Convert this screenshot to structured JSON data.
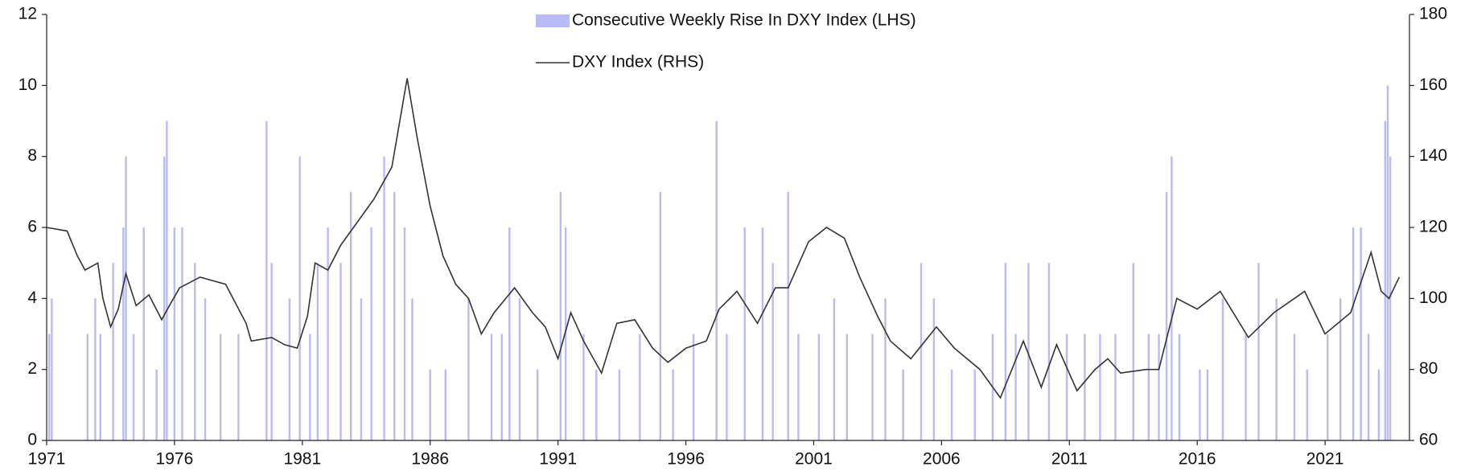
{
  "chart_data": {
    "type": "combo",
    "series": [
      {
        "name": "Consecutive Weekly Rise In DXY Index (LHS)",
        "type": "bar",
        "axis": "y",
        "color": "#babaf6",
        "x": [
          1971.1,
          1971.2,
          1972.6,
          1972.9,
          1973.1,
          1973.6,
          1974.0,
          1974.1,
          1974.4,
          1974.8,
          1975.3,
          1975.6,
          1975.7,
          1976.0,
          1976.3,
          1976.8,
          1977.2,
          1977.8,
          1978.5,
          1979.6,
          1979.8,
          1980.5,
          1980.9,
          1981.3,
          1981.6,
          1982.0,
          1982.5,
          1982.9,
          1983.3,
          1983.7,
          1984.2,
          1984.6,
          1985.0,
          1985.3,
          1986.0,
          1986.6,
          1987.5,
          1988.4,
          1988.8,
          1989.1,
          1989.5,
          1990.2,
          1991.1,
          1991.3,
          1992.0,
          1992.5,
          1993.4,
          1994.2,
          1995.0,
          1995.5,
          1996.3,
          1997.2,
          1997.6,
          1998.3,
          1999.0,
          1999.4,
          2000.0,
          2000.4,
          2001.2,
          2001.8,
          2002.3,
          2003.3,
          2003.8,
          2004.5,
          2005.2,
          2005.7,
          2006.4,
          2007.3,
          2008.0,
          2008.5,
          2008.9,
          2009.4,
          2010.2,
          2010.9,
          2011.6,
          2012.2,
          2012.8,
          2013.5,
          2014.1,
          2014.5,
          2014.8,
          2015.0,
          2015.3,
          2016.1,
          2016.4,
          2017.0,
          2017.9,
          2018.4,
          2019.1,
          2019.8,
          2020.3,
          2021.1,
          2021.6,
          2022.1,
          2022.4,
          2022.7,
          2023.1,
          2023.35,
          2023.45,
          2023.55
        ],
        "values": [
          3,
          4,
          3,
          4,
          3,
          5,
          6,
          8,
          3,
          6,
          2,
          8,
          9,
          6,
          6,
          5,
          4,
          3,
          3,
          9,
          5,
          4,
          8,
          3,
          5,
          6,
          5,
          7,
          4,
          6,
          8,
          7,
          6,
          4,
          2,
          2,
          4,
          3,
          3,
          6,
          4,
          2,
          7,
          6,
          3,
          2,
          2,
          3,
          7,
          2,
          3,
          9,
          3,
          6,
          6,
          5,
          7,
          3,
          3,
          4,
          3,
          3,
          4,
          2,
          5,
          4,
          2,
          2,
          3,
          5,
          3,
          5,
          5,
          3,
          3,
          3,
          3,
          5,
          3,
          3,
          7,
          8,
          3,
          2,
          2,
          4,
          3,
          5,
          4,
          3,
          2,
          3,
          4,
          6,
          6,
          3,
          2,
          9,
          10,
          8
        ]
      },
      {
        "name": "DXY Index (RHS)",
        "type": "line",
        "axis": "y2",
        "color": "#333333",
        "x": [
          1971,
          1971.8,
          1972.2,
          1972.5,
          1973,
          1973.2,
          1973.5,
          1973.8,
          1974.1,
          1974.5,
          1975,
          1975.5,
          1975.8,
          1976.2,
          1977,
          1978,
          1978.8,
          1979,
          1979.8,
          1980.3,
          1980.8,
          1981.2,
          1981.5,
          1982,
          1982.5,
          1983,
          1983.8,
          1984.5,
          1985.1,
          1985.5,
          1986,
          1986.5,
          1987,
          1987.5,
          1988,
          1988.5,
          1989.3,
          1990,
          1990.5,
          1991,
          1991.5,
          1992,
          1992.7,
          1993.3,
          1994,
          1994.7,
          1995.3,
          1996,
          1996.8,
          1997.3,
          1998,
          1998.8,
          1999.5,
          2000,
          2000.8,
          2001.5,
          2002.2,
          2002.8,
          2003.5,
          2004,
          2004.8,
          2005.8,
          2006.5,
          2007.5,
          2008.3,
          2009.2,
          2009.9,
          2010.5,
          2011.3,
          2012,
          2012.5,
          2013,
          2014,
          2014.5,
          2015.2,
          2016,
          2016.9,
          2018,
          2019,
          2020.2,
          2021,
          2022,
          2022.8,
          2023.2,
          2023.5,
          2023.9
        ],
        "values": [
          120,
          119,
          112,
          108,
          110,
          100,
          92,
          97,
          107,
          98,
          101,
          94,
          98,
          103,
          106,
          104,
          93,
          88,
          89,
          87,
          86,
          95,
          110,
          108,
          115,
          120,
          128,
          137,
          162,
          145,
          126,
          112,
          104,
          100,
          90,
          96,
          103,
          96,
          92,
          83,
          96,
          88,
          79,
          93,
          94,
          86,
          82,
          86,
          88,
          97,
          102,
          93,
          103,
          103,
          116,
          120,
          117,
          106,
          95,
          88,
          83,
          92,
          86,
          80,
          72,
          88,
          75,
          87,
          74,
          80,
          83,
          79,
          80,
          80,
          100,
          97,
          102,
          89,
          96,
          102,
          90,
          96,
          113,
          102,
          100,
          106
        ]
      }
    ],
    "xlim": [
      1971,
      2024.3
    ],
    "xticks": [
      1971,
      1976,
      1981,
      1986,
      1991,
      1996,
      2001,
      2006,
      2011,
      2016,
      2021
    ],
    "ylim": [
      0,
      12
    ],
    "yticks": [
      0,
      2,
      4,
      6,
      8,
      10,
      12
    ],
    "y2lim": [
      60,
      180
    ],
    "y2ticks": [
      60,
      80,
      100,
      120,
      140,
      160,
      180
    ],
    "grid": false
  }
}
